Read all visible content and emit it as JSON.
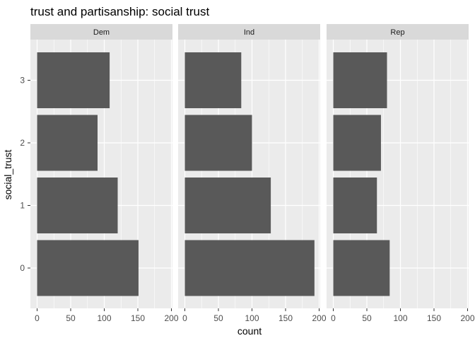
{
  "chart_data": {
    "type": "bar",
    "orientation": "horizontal",
    "title": "trust and partisanship: social trust",
    "xlabel": "count",
    "ylabel": "social_trust",
    "xlim": [
      0,
      200
    ],
    "x_ticks": [
      0,
      50,
      100,
      150,
      200
    ],
    "x_tick_labels": [
      "0",
      "50",
      "100",
      "150",
      "200"
    ],
    "categories": [
      "0",
      "1",
      "2",
      "3"
    ],
    "grid": true,
    "colors": {
      "bar": "#595959",
      "panel": "#ebebeb",
      "strip": "#d9d9d9",
      "grid": "#ffffff"
    },
    "facets": [
      {
        "name": "Dem",
        "values": [
          151,
          120,
          90,
          108
        ]
      },
      {
        "name": "Ind",
        "values": [
          193,
          128,
          100,
          84
        ]
      },
      {
        "name": "Rep",
        "values": [
          84,
          65,
          71,
          80
        ]
      }
    ]
  }
}
